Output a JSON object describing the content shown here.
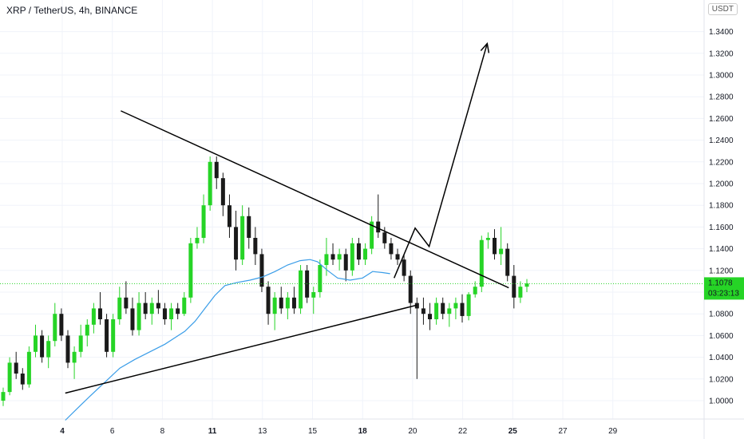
{
  "header": {
    "symbol_label": "XRP / TetherUS, 4h, BINANCE",
    "unit_label": "USDT"
  },
  "price_badge": {
    "price": "1.1078",
    "countdown": "03:23:13",
    "color": "#26d426"
  },
  "colors": {
    "up": "#26d426",
    "down": "#1a1a1a",
    "ma": "#3a9de8",
    "bg": "#ffffff",
    "grid": "#f0f3fa",
    "drawing": "#000000"
  },
  "chart_data": {
    "type": "candlestick",
    "y_axis": {
      "min": 0.98,
      "max": 1.35,
      "ticks": [
        "1.0000",
        "1.0200",
        "1.0400",
        "1.0600",
        "1.0800",
        "1.1000",
        "1.1200",
        "1.1400",
        "1.1600",
        "1.1800",
        "1.2000",
        "1.2200",
        "1.2400",
        "1.2600",
        "1.2800",
        "1.3000",
        "1.3200",
        "1.3400"
      ]
    },
    "x_axis": {
      "ticks": [
        {
          "label": "4",
          "bold": true
        },
        {
          "label": "6",
          "bold": false
        },
        {
          "label": "8",
          "bold": false
        },
        {
          "label": "11",
          "bold": true
        },
        {
          "label": "13",
          "bold": false
        },
        {
          "label": "15",
          "bold": false
        },
        {
          "label": "18",
          "bold": true
        },
        {
          "label": "20",
          "bold": false
        },
        {
          "label": "22",
          "bold": false
        },
        {
          "label": "25",
          "bold": true
        },
        {
          "label": "27",
          "bold": false
        },
        {
          "label": "29",
          "bold": false
        }
      ]
    },
    "candles": [
      [
        1.0,
        1.012,
        0.995,
        1.008
      ],
      [
        1.008,
        1.04,
        1.005,
        1.035
      ],
      [
        1.035,
        1.045,
        1.02,
        1.025
      ],
      [
        1.025,
        1.03,
        1.01,
        1.015
      ],
      [
        1.015,
        1.05,
        1.012,
        1.045
      ],
      [
        1.045,
        1.07,
        1.04,
        1.06
      ],
      [
        1.06,
        1.065,
        1.035,
        1.04
      ],
      [
        1.04,
        1.06,
        1.03,
        1.055
      ],
      [
        1.055,
        1.09,
        1.05,
        1.08
      ],
      [
        1.08,
        1.085,
        1.055,
        1.06
      ],
      [
        1.06,
        1.065,
        1.03,
        1.035
      ],
      [
        1.035,
        1.05,
        1.02,
        1.045
      ],
      [
        1.045,
        1.07,
        1.04,
        1.06
      ],
      [
        1.06,
        1.075,
        1.05,
        1.07
      ],
      [
        1.07,
        1.09,
        1.062,
        1.085
      ],
      [
        1.085,
        1.1,
        1.07,
        1.075
      ],
      [
        1.075,
        1.08,
        1.04,
        1.045
      ],
      [
        1.045,
        1.08,
        1.04,
        1.075
      ],
      [
        1.075,
        1.105,
        1.07,
        1.095
      ],
      [
        1.095,
        1.11,
        1.08,
        1.085
      ],
      [
        1.085,
        1.095,
        1.06,
        1.065
      ],
      [
        1.065,
        1.1,
        1.06,
        1.09
      ],
      [
        1.09,
        1.1,
        1.075,
        1.08
      ],
      [
        1.08,
        1.095,
        1.07,
        1.09
      ],
      [
        1.09,
        1.102,
        1.08,
        1.085
      ],
      [
        1.085,
        1.09,
        1.07,
        1.075
      ],
      [
        1.075,
        1.09,
        1.065,
        1.085
      ],
      [
        1.085,
        1.09,
        1.075,
        1.08
      ],
      [
        1.08,
        1.1,
        1.078,
        1.095
      ],
      [
        1.095,
        1.15,
        1.09,
        1.145
      ],
      [
        1.145,
        1.16,
        1.14,
        1.15
      ],
      [
        1.15,
        1.19,
        1.145,
        1.18
      ],
      [
        1.18,
        1.225,
        1.175,
        1.22
      ],
      [
        1.22,
        1.225,
        1.195,
        1.205
      ],
      [
        1.205,
        1.21,
        1.17,
        1.18
      ],
      [
        1.18,
        1.19,
        1.15,
        1.16
      ],
      [
        1.16,
        1.175,
        1.12,
        1.13
      ],
      [
        1.13,
        1.18,
        1.125,
        1.17
      ],
      [
        1.17,
        1.178,
        1.14,
        1.15
      ],
      [
        1.15,
        1.16,
        1.125,
        1.135
      ],
      [
        1.135,
        1.14,
        1.1,
        1.105
      ],
      [
        1.105,
        1.11,
        1.07,
        1.08
      ],
      [
        1.08,
        1.1,
        1.065,
        1.095
      ],
      [
        1.095,
        1.105,
        1.08,
        1.085
      ],
      [
        1.085,
        1.1,
        1.075,
        1.095
      ],
      [
        1.095,
        1.105,
        1.08,
        1.085
      ],
      [
        1.085,
        1.125,
        1.08,
        1.12
      ],
      [
        1.12,
        1.125,
        1.09,
        1.095
      ],
      [
        1.095,
        1.105,
        1.08,
        1.1
      ],
      [
        1.1,
        1.13,
        1.095,
        1.125
      ],
      [
        1.125,
        1.15,
        1.115,
        1.135
      ],
      [
        1.135,
        1.145,
        1.125,
        1.13
      ],
      [
        1.13,
        1.14,
        1.12,
        1.135
      ],
      [
        1.135,
        1.14,
        1.11,
        1.12
      ],
      [
        1.12,
        1.15,
        1.115,
        1.145
      ],
      [
        1.145,
        1.15,
        1.125,
        1.13
      ],
      [
        1.13,
        1.145,
        1.125,
        1.14
      ],
      [
        1.14,
        1.17,
        1.135,
        1.165
      ],
      [
        1.165,
        1.19,
        1.15,
        1.155
      ],
      [
        1.155,
        1.16,
        1.14,
        1.145
      ],
      [
        1.145,
        1.15,
        1.13,
        1.135
      ],
      [
        1.135,
        1.14,
        1.125,
        1.13
      ],
      [
        1.13,
        1.135,
        1.11,
        1.115
      ],
      [
        1.115,
        1.12,
        1.08,
        1.09
      ],
      [
        1.09,
        1.095,
        1.02,
        1.085
      ],
      [
        1.085,
        1.095,
        1.07,
        1.08
      ],
      [
        1.08,
        1.09,
        1.065,
        1.075
      ],
      [
        1.075,
        1.095,
        1.07,
        1.09
      ],
      [
        1.09,
        1.095,
        1.075,
        1.08
      ],
      [
        1.08,
        1.09,
        1.068,
        1.085
      ],
      [
        1.085,
        1.095,
        1.075,
        1.09
      ],
      [
        1.09,
        1.098,
        1.072,
        1.078
      ],
      [
        1.078,
        1.1,
        1.074,
        1.098
      ],
      [
        1.098,
        1.11,
        1.095,
        1.105
      ],
      [
        1.105,
        1.152,
        1.1,
        1.148
      ],
      [
        1.148,
        1.155,
        1.14,
        1.15
      ],
      [
        1.15,
        1.158,
        1.13,
        1.135
      ],
      [
        1.135,
        1.16,
        1.125,
        1.14
      ],
      [
        1.14,
        1.145,
        1.11,
        1.115
      ],
      [
        1.115,
        1.125,
        1.085,
        1.095
      ],
      [
        1.095,
        1.11,
        1.09,
        1.105
      ],
      [
        1.105,
        1.112,
        1.1,
        1.108
      ]
    ],
    "moving_average": [
      {
        "x": 0.06,
        "y": 0.982
      },
      {
        "x": 0.28,
        "y": 0.992
      },
      {
        "x": 0.55,
        "y": 1.004
      },
      {
        "x": 0.85,
        "y": 1.017
      },
      {
        "x": 1.15,
        "y": 1.03
      },
      {
        "x": 1.45,
        "y": 1.038
      },
      {
        "x": 1.75,
        "y": 1.045
      },
      {
        "x": 2.05,
        "y": 1.052
      },
      {
        "x": 2.25,
        "y": 1.058
      },
      {
        "x": 2.45,
        "y": 1.064
      },
      {
        "x": 2.65,
        "y": 1.073
      },
      {
        "x": 2.85,
        "y": 1.085
      },
      {
        "x": 3.05,
        "y": 1.097
      },
      {
        "x": 3.25,
        "y": 1.106
      },
      {
        "x": 3.5,
        "y": 1.109
      },
      {
        "x": 3.75,
        "y": 1.111
      },
      {
        "x": 4.0,
        "y": 1.114
      },
      {
        "x": 4.25,
        "y": 1.119
      },
      {
        "x": 4.5,
        "y": 1.125
      },
      {
        "x": 4.75,
        "y": 1.129
      },
      {
        "x": 4.95,
        "y": 1.13
      },
      {
        "x": 5.1,
        "y": 1.128
      },
      {
        "x": 5.3,
        "y": 1.12
      },
      {
        "x": 5.5,
        "y": 1.113
      },
      {
        "x": 5.75,
        "y": 1.111
      },
      {
        "x": 6.0,
        "y": 1.113
      },
      {
        "x": 6.2,
        "y": 1.119
      },
      {
        "x": 6.4,
        "y": 1.118
      },
      {
        "x": 6.55,
        "y": 1.117
      }
    ],
    "trendlines": [
      {
        "name": "upper-resistance",
        "from": {
          "x": 1.17,
          "y": 1.267
        },
        "to": {
          "x": 8.92,
          "y": 1.104
        }
      },
      {
        "name": "lower-support",
        "from": {
          "x": 0.06,
          "y": 1.007
        },
        "to": {
          "x": 7.08,
          "y": 1.088
        }
      }
    ],
    "projection_path": [
      {
        "x": 6.63,
        "y": 1.113
      },
      {
        "x": 7.05,
        "y": 1.159
      },
      {
        "x": 7.33,
        "y": 1.142
      },
      {
        "x": 8.49,
        "y": 1.329
      }
    ],
    "last_price_line": 1.1078
  }
}
